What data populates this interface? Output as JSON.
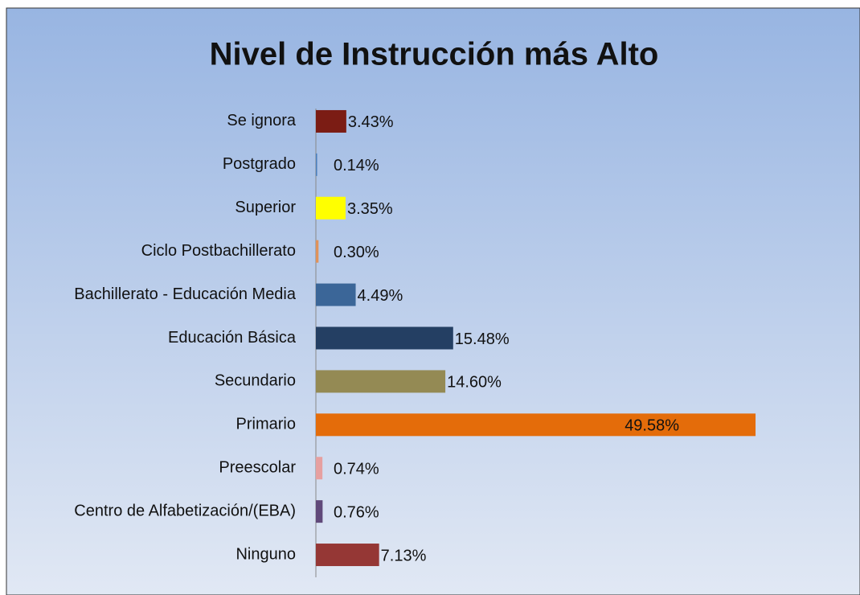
{
  "chart_data": {
    "type": "bar",
    "orientation": "horizontal",
    "title": "Nivel de Instrucción más Alto",
    "categories": [
      "Se ignora",
      "Postgrado",
      "Superior",
      "Ciclo Postbachillerato",
      "Bachillerato - Educación Media",
      "Educación Básica",
      "Secundario",
      "Primario",
      "Preescolar",
      "Centro de Alfabetización/(EBA)",
      "Ninguno"
    ],
    "values": [
      3.43,
      0.14,
      3.35,
      0.3,
      4.49,
      15.48,
      14.6,
      49.58,
      0.74,
      0.76,
      7.13
    ],
    "value_labels": [
      "3.43%",
      "0.14%",
      "3.35%",
      "0.30%",
      "4.49%",
      "15.48%",
      "14.60%",
      "49.58%",
      "0.74%",
      "0.76%",
      "7.13%"
    ],
    "colors": [
      "#7b1c14",
      "#4a7ebb",
      "#ffff00",
      "#e0925a",
      "#3b6698",
      "#243f63",
      "#948a54",
      "#e46c0a",
      "#e6a0a0",
      "#60497a",
      "#953735"
    ],
    "xlim": [
      0,
      60
    ]
  }
}
